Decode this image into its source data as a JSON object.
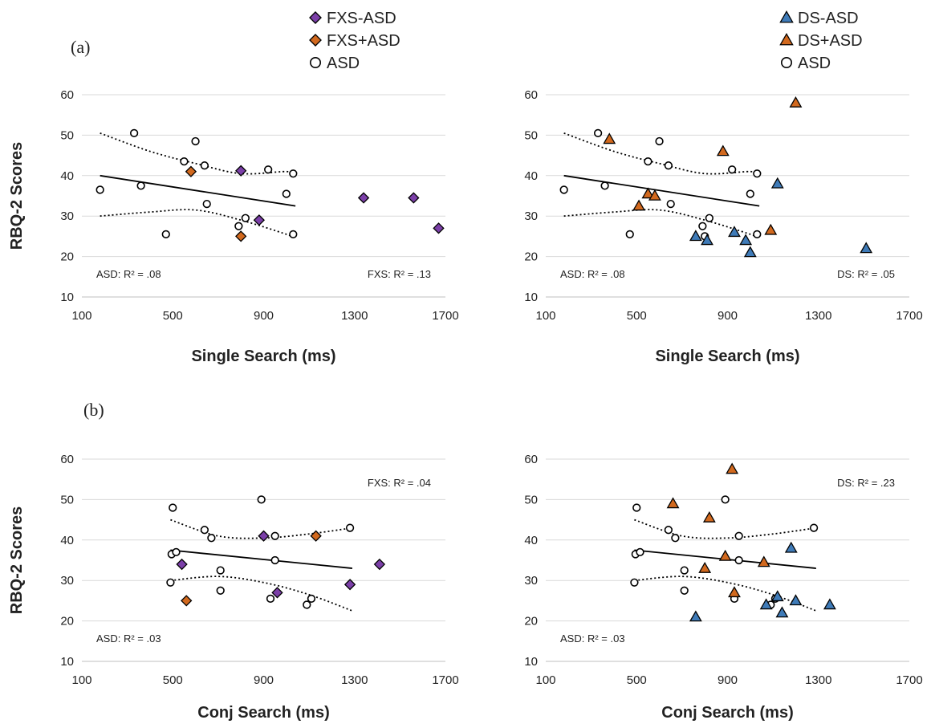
{
  "colors": {
    "purple": "#7b3fa8",
    "orange": "#d2691e",
    "blue": "#3f7bb8",
    "white": "#ffffff",
    "grid": "#d9d9d9",
    "ink": "#000000"
  },
  "panel_labels": [
    "(a)",
    "(b)"
  ],
  "legends": [
    {
      "items": [
        {
          "label": "FXS-ASD",
          "shape": "diamond",
          "color": "purple"
        },
        {
          "label": "FXS+ASD",
          "shape": "diamond",
          "color": "orange"
        },
        {
          "label": "ASD",
          "shape": "circle",
          "color": "white"
        }
      ]
    },
    {
      "items": [
        {
          "label": "DS-ASD",
          "shape": "triangle",
          "color": "blue"
        },
        {
          "label": "DS+ASD",
          "shape": "triangle",
          "color": "orange"
        },
        {
          "label": "ASD",
          "shape": "circle",
          "color": "white"
        }
      ]
    }
  ],
  "chart_data": [
    {
      "type": "scatter",
      "id": "a-fxs",
      "xlabel": "Single Search (ms)",
      "ylabel": "RBQ-2 Scores",
      "xlim": [
        100,
        1700
      ],
      "ylim": [
        10,
        60
      ],
      "xticks": [
        100,
        500,
        900,
        1300,
        1700
      ],
      "yticks": [
        10,
        20,
        30,
        40,
        50,
        60
      ],
      "grid": true,
      "annotations": [
        {
          "text": "ASD: R² = .08",
          "pos": "bottom-left"
        },
        {
          "text": "FXS: R² = .13",
          "pos": "bottom-right"
        }
      ],
      "series": [
        {
          "name": "ASD",
          "shape": "circle",
          "color": "white",
          "x": [
            180,
            330,
            360,
            470,
            550,
            600,
            640,
            650,
            790,
            800,
            820,
            920,
            1000,
            1030,
            1030
          ],
          "y": [
            36.5,
            50.5,
            37.5,
            25.5,
            43.5,
            48.5,
            42.5,
            33,
            27.5,
            25,
            29.5,
            41.5,
            35.5,
            40.5,
            25.5
          ]
        },
        {
          "name": "FXS-ASD",
          "shape": "diamond",
          "color": "purple",
          "x": [
            800,
            880,
            1340,
            1560,
            1670
          ],
          "y": [
            41.2,
            29,
            34.5,
            34.5,
            27
          ]
        },
        {
          "name": "FXS+ASD",
          "shape": "diamond",
          "color": "orange",
          "x": [
            580,
            800
          ],
          "y": [
            41,
            25
          ]
        }
      ],
      "fit": {
        "x": [
          180,
          1040
        ],
        "y": [
          40,
          32.5
        ]
      },
      "ci_upper": {
        "x": [
          180,
          400,
          600,
          800,
          1000,
          1040
        ],
        "y": [
          50.5,
          46,
          43,
          40.5,
          41,
          40
        ]
      },
      "ci_lower": {
        "x": [
          180,
          400,
          600,
          800,
          1000,
          1040
        ],
        "y": [
          30,
          31,
          31.5,
          29,
          25.5,
          24.5
        ]
      }
    },
    {
      "type": "scatter",
      "id": "a-ds",
      "xlabel": "Single Search (ms)",
      "ylabel": "",
      "xlim": [
        100,
        1700
      ],
      "ylim": [
        10,
        60
      ],
      "xticks": [
        100,
        500,
        900,
        1300,
        1700
      ],
      "yticks": [
        10,
        20,
        30,
        40,
        50,
        60
      ],
      "grid": true,
      "annotations": [
        {
          "text": "ASD: R² = .08",
          "pos": "bottom-left"
        },
        {
          "text": "DS: R² = .05",
          "pos": "bottom-right"
        }
      ],
      "series": [
        {
          "name": "ASD",
          "shape": "circle",
          "color": "white",
          "x": [
            180,
            330,
            360,
            470,
            550,
            600,
            640,
            650,
            790,
            800,
            820,
            920,
            1000,
            1030,
            1030
          ],
          "y": [
            36.5,
            50.5,
            37.5,
            25.5,
            43.5,
            48.5,
            42.5,
            33,
            27.5,
            25,
            29.5,
            41.5,
            35.5,
            40.5,
            25.5
          ]
        },
        {
          "name": "DS-ASD",
          "shape": "triangle",
          "color": "blue",
          "x": [
            760,
            810,
            930,
            980,
            1000,
            1120,
            1510
          ],
          "y": [
            25,
            24,
            26,
            24,
            21,
            38,
            22
          ]
        },
        {
          "name": "DS+ASD",
          "shape": "triangle",
          "color": "orange",
          "x": [
            380,
            510,
            550,
            580,
            880,
            1090,
            1200
          ],
          "y": [
            49,
            32.5,
            35.5,
            35,
            46,
            26.5,
            58
          ]
        }
      ],
      "fit": {
        "x": [
          180,
          1040
        ],
        "y": [
          40,
          32.5
        ]
      },
      "ci_upper": {
        "x": [
          180,
          400,
          600,
          800,
          1000,
          1040
        ],
        "y": [
          50.5,
          46,
          43,
          40.5,
          41,
          40
        ]
      },
      "ci_lower": {
        "x": [
          180,
          400,
          600,
          800,
          1000,
          1040
        ],
        "y": [
          30,
          31,
          31.5,
          29,
          25.5,
          24.5
        ]
      }
    },
    {
      "type": "scatter",
      "id": "b-fxs",
      "xlabel": "Conj Search (ms)",
      "ylabel": "RBQ-2 Scores",
      "xlim": [
        100,
        1700
      ],
      "ylim": [
        10,
        60
      ],
      "xticks": [
        100,
        500,
        900,
        1300,
        1700
      ],
      "yticks": [
        10,
        20,
        30,
        40,
        50,
        60
      ],
      "grid": true,
      "annotations": [
        {
          "text": "ASD: R² = .03",
          "pos": "bottom-left"
        },
        {
          "text": "FXS: R² = .04",
          "pos": "top-right"
        }
      ],
      "series": [
        {
          "name": "ASD",
          "shape": "circle",
          "color": "white",
          "x": [
            490,
            495,
            500,
            515,
            640,
            670,
            710,
            710,
            890,
            930,
            950,
            950,
            1090,
            1110,
            1280
          ],
          "y": [
            29.5,
            36.5,
            48,
            37,
            42.5,
            40.5,
            32.5,
            27.5,
            50,
            25.5,
            41,
            35,
            24,
            25.5,
            43
          ]
        },
        {
          "name": "FXS-ASD",
          "shape": "diamond",
          "color": "purple",
          "x": [
            540,
            900,
            960,
            1280,
            1410
          ],
          "y": [
            34,
            41,
            27,
            29,
            34
          ]
        },
        {
          "name": "FXS+ASD",
          "shape": "diamond",
          "color": "orange",
          "x": [
            560,
            1130
          ],
          "y": [
            25,
            41
          ]
        }
      ],
      "fit": {
        "x": [
          490,
          1290
        ],
        "y": [
          37.5,
          33
        ]
      },
      "ci_upper": {
        "x": [
          490,
          700,
          900,
          1100,
          1290
        ],
        "y": [
          45,
          41,
          40.5,
          41.5,
          43
        ]
      },
      "ci_lower": {
        "x": [
          490,
          700,
          900,
          1100,
          1290
        ],
        "y": [
          30,
          31,
          29.5,
          26.5,
          22.5
        ]
      }
    },
    {
      "type": "scatter",
      "id": "b-ds",
      "xlabel": "Conj Search (ms)",
      "ylabel": "",
      "xlim": [
        100,
        1700
      ],
      "ylim": [
        10,
        60
      ],
      "xticks": [
        100,
        500,
        900,
        1300,
        1700
      ],
      "yticks": [
        10,
        20,
        30,
        40,
        50,
        60
      ],
      "grid": true,
      "annotations": [
        {
          "text": "ASD: R² = .03",
          "pos": "bottom-left"
        },
        {
          "text": "DS: R² = .23",
          "pos": "top-right"
        }
      ],
      "series": [
        {
          "name": "ASD",
          "shape": "circle",
          "color": "white",
          "x": [
            490,
            495,
            500,
            515,
            640,
            670,
            710,
            710,
            890,
            930,
            950,
            950,
            1090,
            1110,
            1280
          ],
          "y": [
            29.5,
            36.5,
            48,
            37,
            42.5,
            40.5,
            32.5,
            27.5,
            50,
            25.5,
            41,
            35,
            24,
            25.5,
            43
          ]
        },
        {
          "name": "DS-ASD",
          "shape": "triangle",
          "color": "blue",
          "x": [
            760,
            1070,
            1120,
            1140,
            1180,
            1200,
            1350
          ],
          "y": [
            21,
            24,
            26,
            22,
            38,
            25,
            24
          ]
        },
        {
          "name": "DS+ASD",
          "shape": "triangle",
          "color": "orange",
          "x": [
            660,
            800,
            820,
            890,
            920,
            930,
            1060
          ],
          "y": [
            49,
            33,
            45.5,
            36,
            57.5,
            27,
            34.5
          ]
        }
      ],
      "fit": {
        "x": [
          490,
          1290
        ],
        "y": [
          37.5,
          33
        ]
      },
      "ci_upper": {
        "x": [
          490,
          700,
          900,
          1100,
          1290
        ],
        "y": [
          45,
          41,
          40.5,
          41.5,
          43
        ]
      },
      "ci_lower": {
        "x": [
          490,
          700,
          900,
          1100,
          1290
        ],
        "y": [
          30,
          31,
          29.5,
          26.5,
          22.5
        ]
      }
    }
  ]
}
